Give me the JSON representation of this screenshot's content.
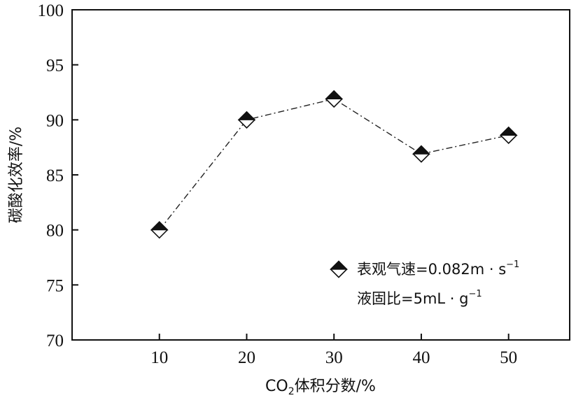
{
  "chart_data": {
    "type": "line",
    "x": [
      10,
      20,
      30,
      40,
      50
    ],
    "series": [
      {
        "values": [
          80.0,
          90.0,
          91.9,
          86.9,
          88.6
        ]
      }
    ],
    "xlabel": {
      "prefix": "CO",
      "subscript": "2",
      "suffix": "体积分数/%"
    },
    "ylabel": "碳酸化效率/%",
    "xlim": [
      0,
      57
    ],
    "ylim": [
      70,
      100
    ],
    "xticks": [
      "10",
      "20",
      "30",
      "40",
      "50"
    ],
    "yticks": [
      "70",
      "75",
      "80",
      "85",
      "90",
      "95",
      "100"
    ],
    "grid": false,
    "line_style": "dash-dot",
    "marker": "half-filled-diamond",
    "legend": {
      "placement": "bottom-right",
      "lines": [
        {
          "text": "表观气速=0.082m · s",
          "sup": "−1"
        },
        {
          "text": "液固比=5mL · g",
          "sup": "−1"
        }
      ]
    }
  }
}
